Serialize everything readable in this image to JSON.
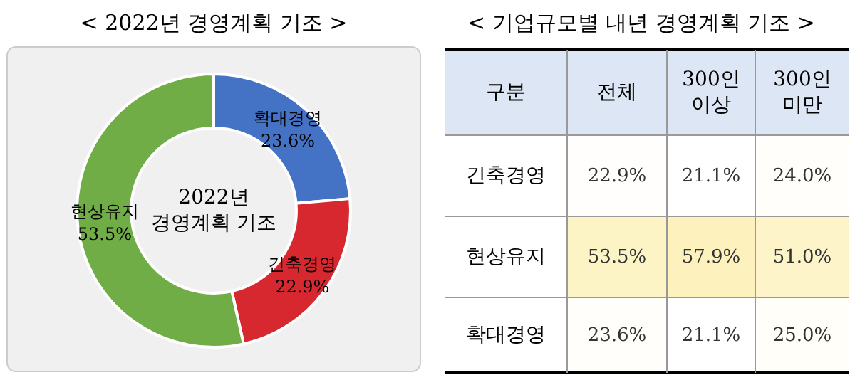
{
  "chart_data": [
    {
      "type": "donut",
      "title": "< 2022년 경영계획 기조 >",
      "categories": [
        "확대경영",
        "긴축경영",
        "현상유지"
      ],
      "values": [
        23.6,
        22.9,
        53.5
      ],
      "colors": [
        "#4472c4",
        "#d7282f",
        "#70ad47"
      ],
      "value_labels": [
        "23.6%",
        "22.9%",
        "53.5%"
      ],
      "annotations": [
        "2022년 경영계획 기조"
      ]
    },
    {
      "type": "heatmap",
      "title": "< 기업규모별 내년 경영계획 기조 >",
      "ylabel": "구분",
      "categories": [
        "전체",
        "300인 이상",
        "300인 미만"
      ],
      "y_categories": [
        "긴축경영",
        "현상유지",
        "확대경영"
      ],
      "cells": [
        [
          22.9,
          21.1,
          24.0
        ],
        [
          53.5,
          57.9,
          51.0
        ],
        [
          23.6,
          21.1,
          25.0
        ]
      ],
      "cell_labels": [
        [
          "22.9%",
          "21.1%",
          "24.0%"
        ],
        [
          "53.5%",
          "57.9%",
          "51.0%"
        ],
        [
          "23.6%",
          "21.1%",
          "25.0%"
        ]
      ]
    }
  ]
}
